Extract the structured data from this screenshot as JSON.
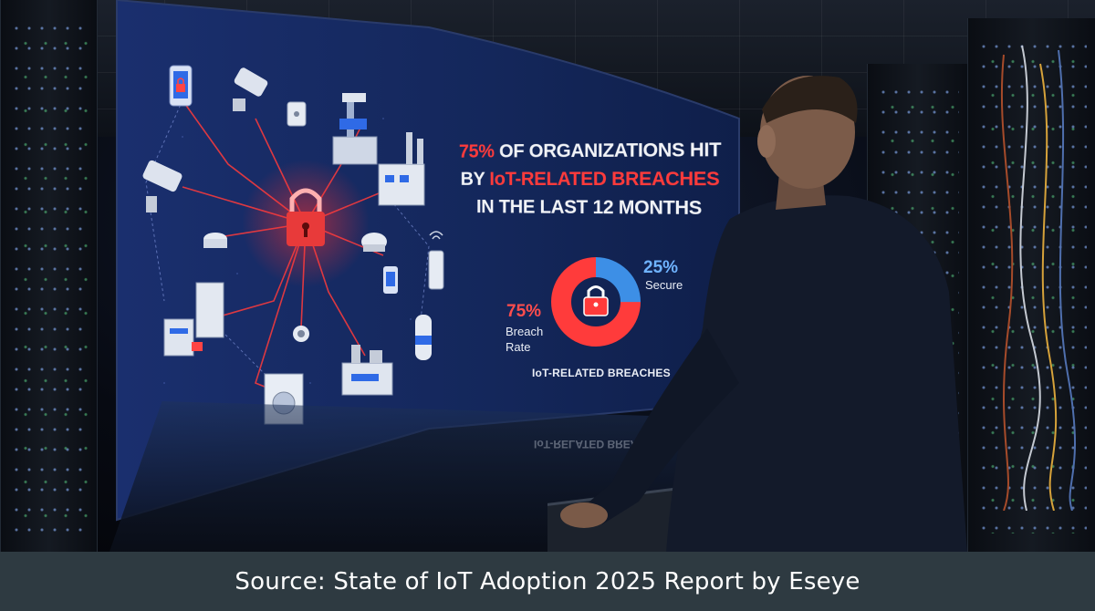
{
  "screen": {
    "headline_line1_pct": "75%",
    "headline_line1_rest": " OF ORGANIZATIONS HIT",
    "headline_line2_pre": "BY ",
    "headline_line2_red": "IoT-RELATED BREACHES",
    "headline_line3": "IN THE LAST 12 MONTHS",
    "donut": {
      "secure_pct_label": "25%",
      "secure_label": "Secure",
      "breach_pct_label": "75%",
      "breach_label": "Breach Rate",
      "caption": "IoT-RELATED BREACHES",
      "breach_fraction": 0.75,
      "secure_fraction": 0.25,
      "breach_color": "#ff3b3b",
      "secure_color": "#3d8fe6"
    },
    "colors": {
      "screen_bg": "#13265a",
      "accent_red": "#ff3b3b",
      "accent_blue": "#3d8fe6"
    },
    "icons": [
      "padlock-icon",
      "smartphone-lock-icon",
      "security-camera-icon",
      "robot-arm-icon",
      "factory-icon",
      "router-icon",
      "smart-speaker-icon",
      "server-icon",
      "washing-machine-icon",
      "wifi-sensor-icon"
    ]
  },
  "caption_bar": {
    "source_text": "Source: State of IoT Adoption 2025 Report by Eseye"
  }
}
